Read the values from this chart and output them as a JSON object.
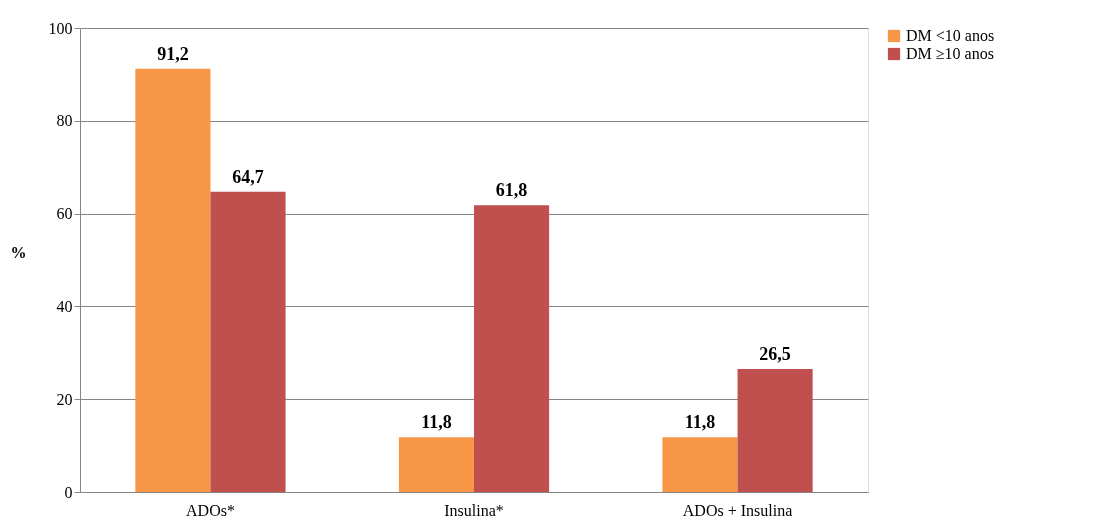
{
  "chart_data": {
    "type": "bar",
    "categories": [
      "ADOs*",
      "Insulina*",
      "ADOs + Insulina"
    ],
    "ylabel": "%",
    "series": [
      {
        "name": "DM <10 anos",
        "color": "#f79646",
        "values": [
          91.2,
          11.8,
          11.8
        ],
        "value_labels": [
          "91,2",
          "11,8",
          "11,8"
        ]
      },
      {
        "name": "DM ≥10 anos",
        "color": "#c0504d",
        "values": [
          64.7,
          61.8,
          26.5
        ],
        "value_labels": [
          "64,7",
          "61,8",
          "26,5"
        ]
      }
    ],
    "ylim": [
      0,
      100
    ],
    "yticks": [
      0,
      20,
      40,
      60,
      80,
      100
    ],
    "grid": "y",
    "legend": "right"
  }
}
